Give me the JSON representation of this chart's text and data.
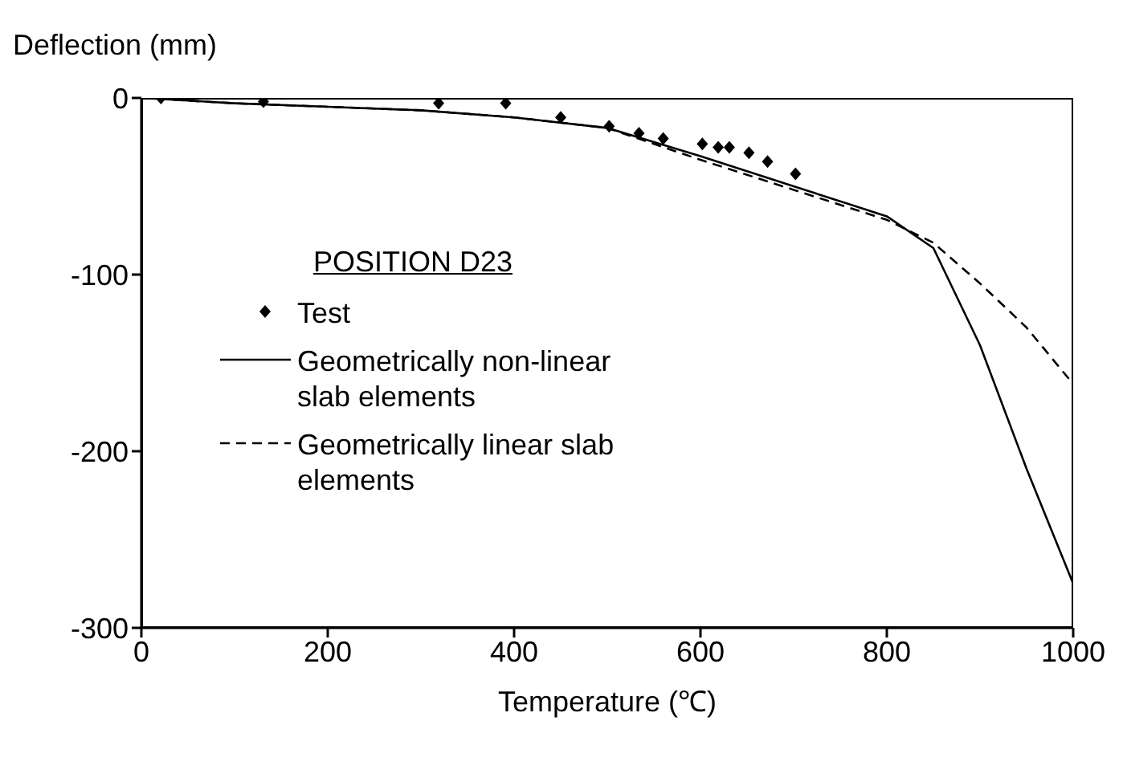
{
  "chart_data": {
    "type": "line",
    "ylabel": "Deflection (mm)",
    "xlabel": "Temperature (℃)",
    "legend_title": "POSITION D23",
    "legend": "left",
    "xlim": [
      0,
      1000
    ],
    "xticks": [
      0,
      200,
      400,
      600,
      800,
      1000
    ],
    "ylim": [
      -300,
      0
    ],
    "yticks": [
      -300,
      -200,
      -100,
      0
    ],
    "grid": false,
    "series": [
      {
        "name": "Test",
        "type": "scatter",
        "marker": "diamond",
        "color": "#000000",
        "x": [
          21,
          131,
          319,
          391,
          450,
          502,
          534,
          560,
          602,
          619,
          631,
          652,
          672,
          702
        ],
        "values": [
          0,
          -2,
          -3,
          -3,
          -11,
          -16,
          -20,
          -23,
          -26,
          -28,
          -28,
          -31,
          -36,
          -43
        ]
      },
      {
        "name": "Geometrically non-linear slab elements",
        "line_style": "solid",
        "color": "#000000",
        "x": [
          0,
          100,
          200,
          300,
          400,
          500,
          600,
          700,
          800,
          850,
          900,
          950,
          1000
        ],
        "values": [
          0,
          -3,
          -5,
          -7,
          -11,
          -17,
          -33,
          -50,
          -67,
          -85,
          -140,
          -210,
          -275
        ]
      },
      {
        "name": "Geometrically linear slab elements",
        "line_style": "dashed",
        "color": "#000000",
        "x": [
          0,
          100,
          200,
          300,
          400,
          500,
          600,
          700,
          800,
          850,
          900,
          950,
          1000
        ],
        "values": [
          0,
          -3,
          -5,
          -7,
          -11,
          -17,
          -35,
          -52,
          -69,
          -82,
          -105,
          -130,
          -162
        ]
      }
    ]
  }
}
